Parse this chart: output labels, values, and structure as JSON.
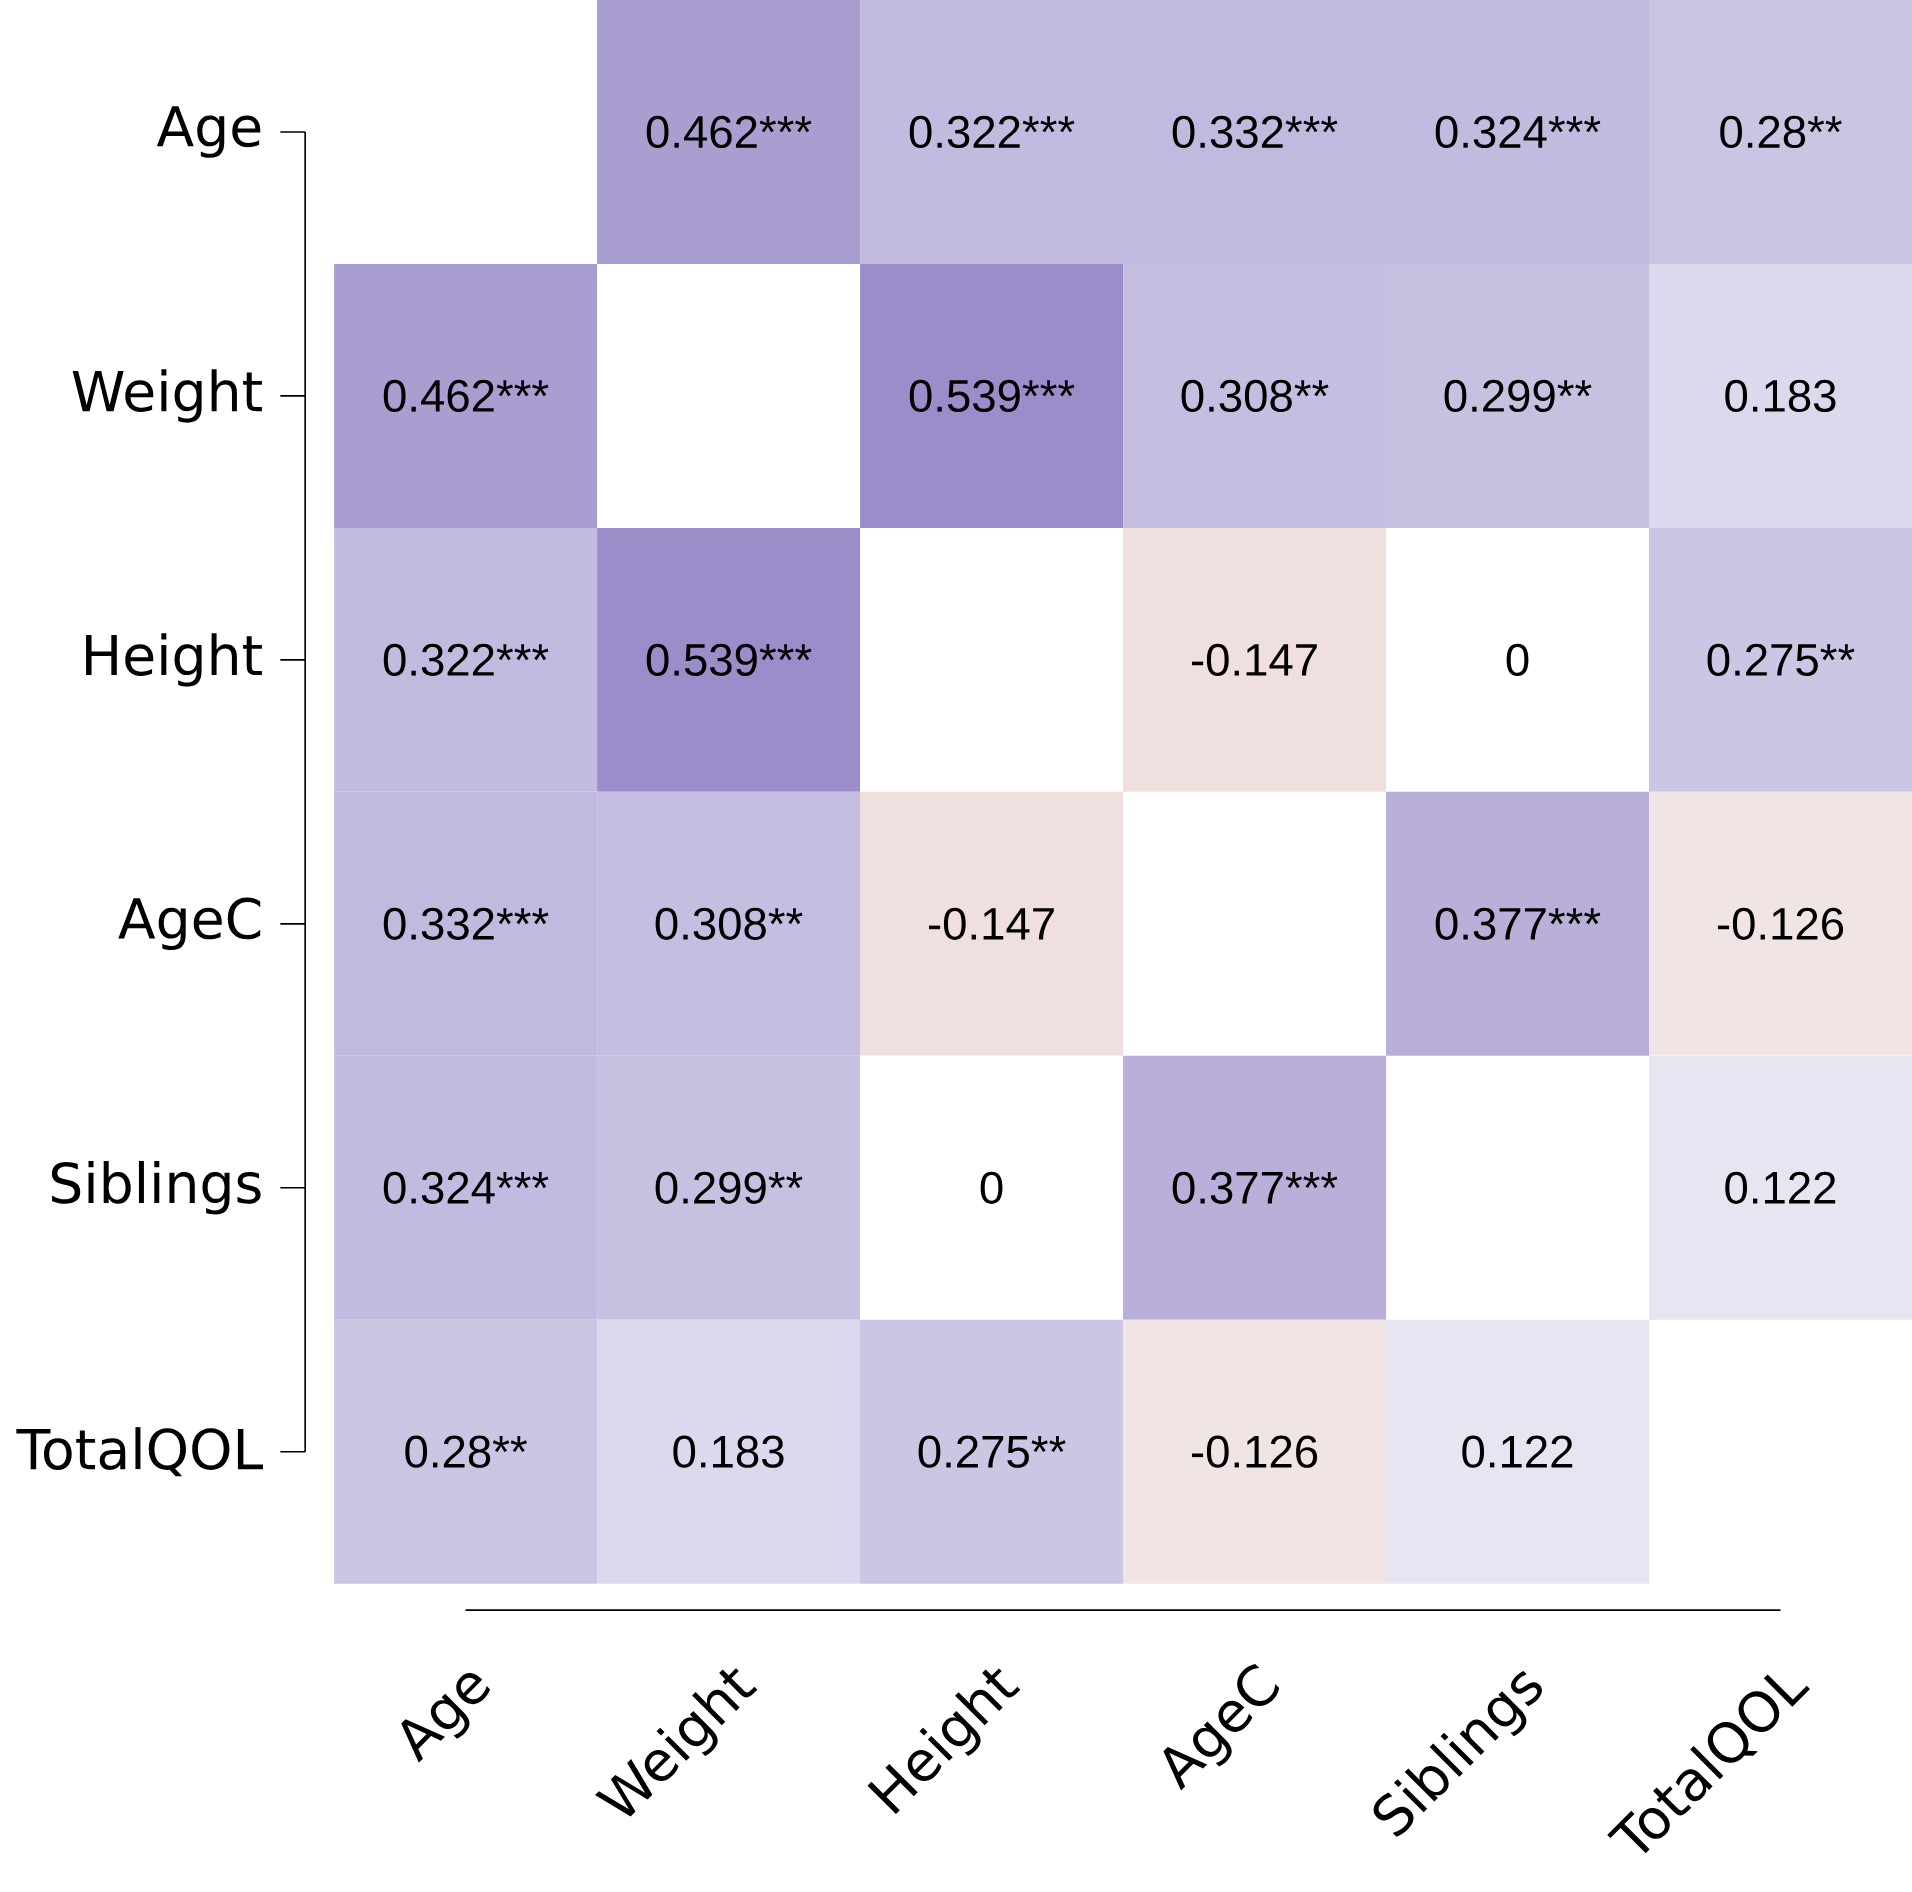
{
  "chart_data": {
    "type": "heatmap",
    "categories": [
      "Age",
      "Weight",
      "Height",
      "AgeC",
      "Siblings",
      "TotalQOL"
    ],
    "y_categories": [
      "Age",
      "Weight",
      "Height",
      "AgeC",
      "Siblings",
      "TotalQOL"
    ],
    "cells": [
      [
        null,
        0.462,
        0.322,
        0.332,
        0.324,
        0.28
      ],
      [
        0.462,
        null,
        0.539,
        0.308,
        0.299,
        0.183
      ],
      [
        0.322,
        0.539,
        null,
        -0.147,
        0,
        0.275
      ],
      [
        0.332,
        0.308,
        -0.147,
        null,
        0.377,
        -0.126
      ],
      [
        0.324,
        0.299,
        0,
        0.377,
        null,
        0.122
      ],
      [
        0.28,
        0.183,
        0.275,
        -0.126,
        0.122,
        null
      ]
    ],
    "cell_labels": [
      [
        null,
        "0.462***",
        "0.322***",
        "0.332***",
        "0.324***",
        "0.28**"
      ],
      [
        "0.462***",
        null,
        "0.539***",
        "0.308**",
        "0.299**",
        "0.183"
      ],
      [
        "0.322***",
        "0.539***",
        null,
        "-0.147",
        "0",
        "0.275**"
      ],
      [
        "0.332***",
        "0.308**",
        "-0.147",
        null,
        "0.377***",
        "-0.126"
      ],
      [
        "0.324***",
        "0.299**",
        "0",
        "0.377***",
        null,
        "0.122"
      ],
      [
        "0.28**",
        "0.183",
        "0.275**",
        "-0.126",
        "0.122",
        null
      ]
    ]
  }
}
